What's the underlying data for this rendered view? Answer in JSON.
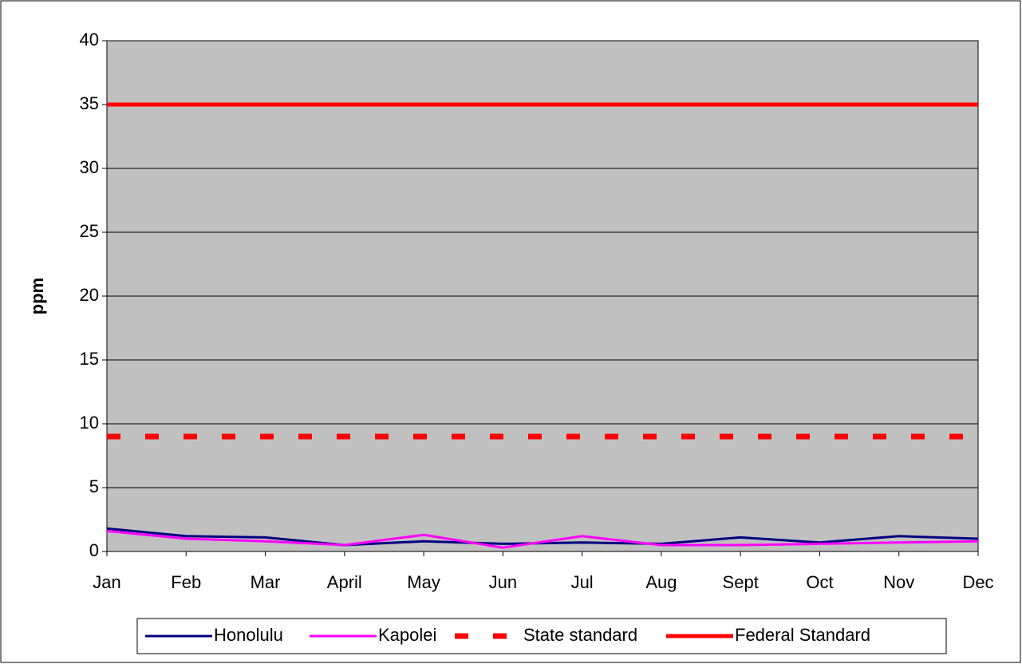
{
  "chart_data": {
    "type": "line",
    "y_label": "ppm",
    "categories": [
      "Jan",
      "Feb",
      "Mar",
      "April",
      "May",
      "Jun",
      "Jul",
      "Aug",
      "Sept",
      "Oct",
      "Nov",
      "Dec"
    ],
    "series": [
      {
        "name": "Honolulu",
        "color": "#000080",
        "width": 3,
        "dashed": false,
        "values": [
          1.8,
          1.2,
          1.1,
          0.5,
          0.8,
          0.6,
          0.7,
          0.6,
          1.1,
          0.7,
          1.2,
          1.0
        ]
      },
      {
        "name": "Kapolei",
        "color": "#ff00ff",
        "width": 3,
        "dashed": false,
        "values": [
          1.6,
          1.0,
          0.8,
          0.5,
          1.3,
          0.3,
          1.2,
          0.5,
          0.5,
          0.6,
          0.7,
          0.8
        ]
      },
      {
        "name": "State standard",
        "color": "#ff0000",
        "width": 7,
        "dashed": true,
        "values": [
          9,
          9,
          9,
          9,
          9,
          9,
          9,
          9,
          9,
          9,
          9,
          9
        ]
      },
      {
        "name": "Federal Standard",
        "color": "#ff0000",
        "width": 5,
        "dashed": false,
        "values": [
          35,
          35,
          35,
          35,
          35,
          35,
          35,
          35,
          35,
          35,
          35,
          35
        ]
      }
    ],
    "ylim": [
      0,
      40
    ],
    "yticks": [
      0,
      5,
      10,
      15,
      20,
      25,
      30,
      35,
      40
    ],
    "grid": true,
    "plot_background": "#c0c0c0",
    "legend": "bottom"
  }
}
